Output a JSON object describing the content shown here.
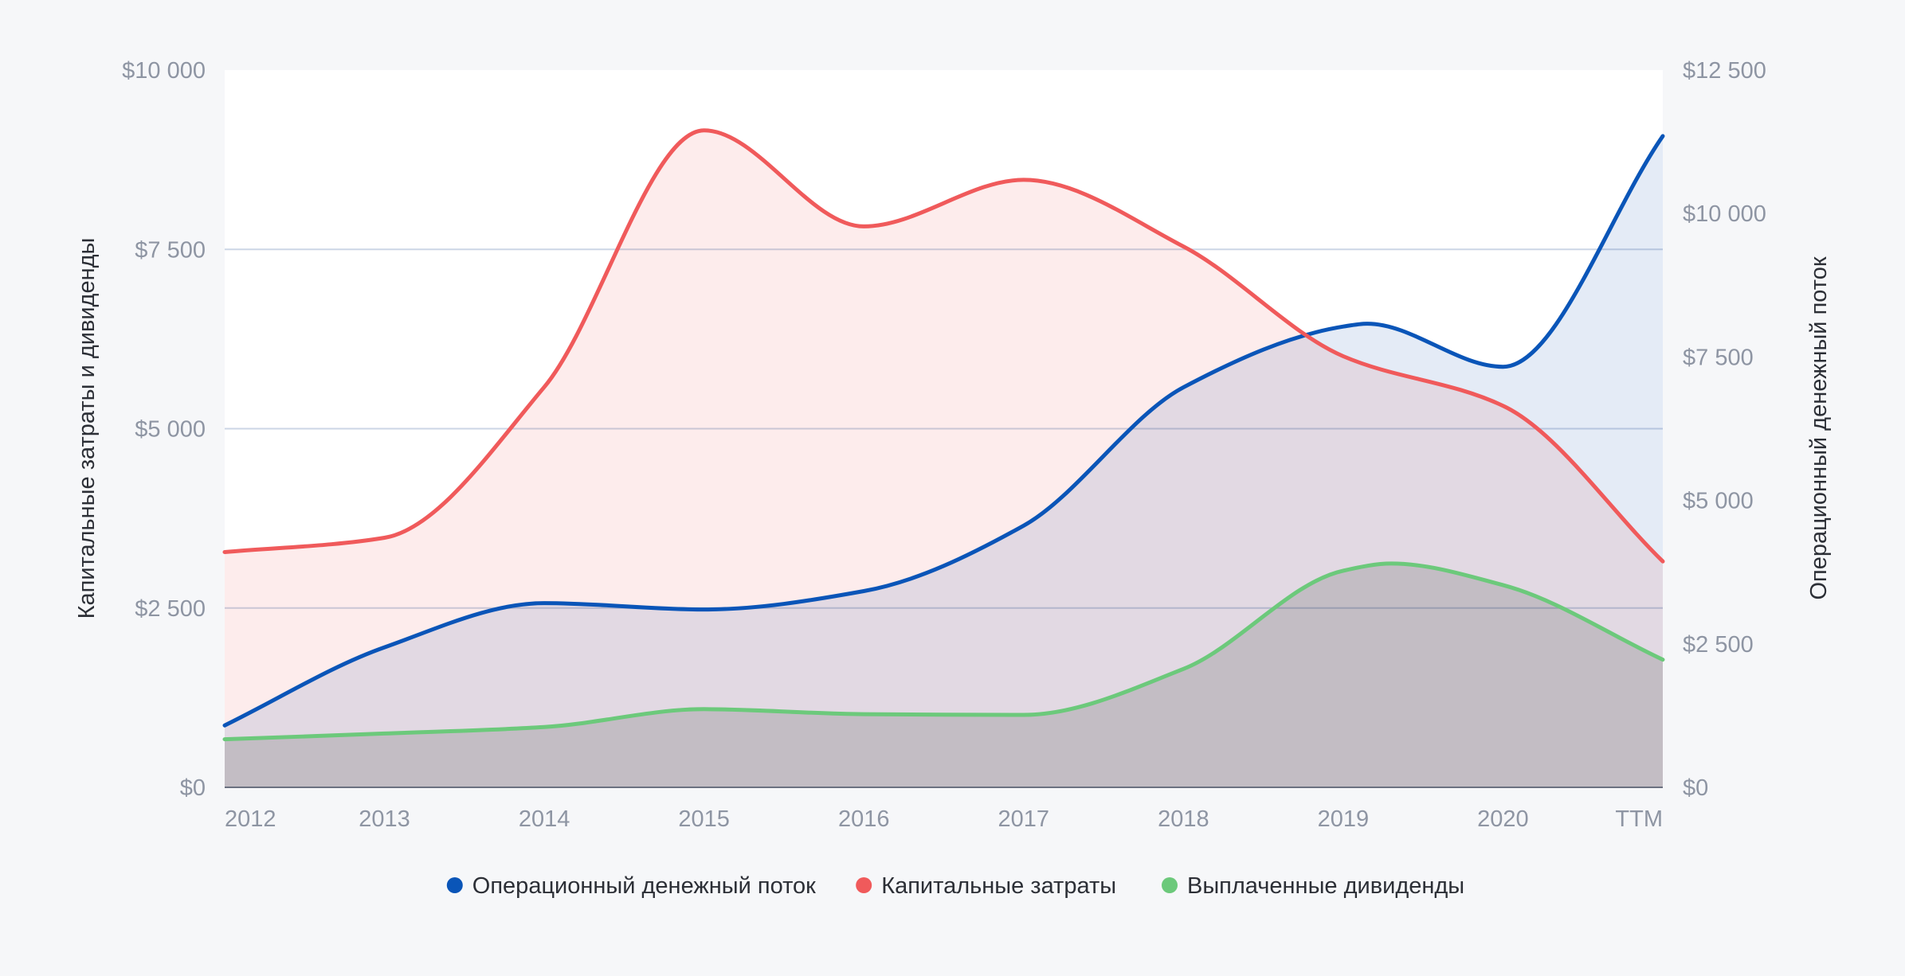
{
  "chart_data": {
    "type": "area",
    "categories": [
      "2012",
      "2013",
      "2014",
      "2015",
      "2016",
      "2017",
      "2018",
      "2019",
      "2020",
      "TTM"
    ],
    "left_axis": {
      "label": "Капитальные затраты и дивиденды",
      "ylim": [
        0,
        10000
      ],
      "ticks": [
        0,
        2500,
        5000,
        7500,
        10000
      ],
      "tick_labels": [
        "$0",
        "$2 500",
        "$5 000",
        "$7 500",
        "$10 000"
      ]
    },
    "right_axis": {
      "label": "Операционный денежный поток",
      "ylim": [
        0,
        12500
      ],
      "ticks": [
        0,
        2500,
        5000,
        7500,
        10000,
        12500
      ],
      "tick_labels": [
        "$0",
        "$2 500",
        "$5 000",
        "$7 500",
        "$10 000",
        "$12 500"
      ]
    },
    "series": [
      {
        "name": "Операционный денежный поток",
        "axis": "right",
        "color": "#0a55b8",
        "fill": "#e4ebf6",
        "x": [
          0,
          1,
          2,
          3,
          4,
          5,
          6,
          7,
          7.15,
          8,
          9
        ],
        "values": [
          1080,
          2440,
          3210,
          3100,
          3420,
          4560,
          6970,
          8030,
          8080,
          7330,
          11350
        ]
      },
      {
        "name": "Капитальные затраты",
        "axis": "left",
        "color": "#f05a5b",
        "fill": "#fdecec",
        "x": [
          0,
          1,
          2,
          3,
          4,
          5,
          6,
          7,
          8,
          9
        ],
        "values": [
          3280,
          3480,
          5580,
          9160,
          7820,
          8470,
          7540,
          6010,
          5320,
          3150
        ]
      },
      {
        "name": "Выплаченные дивиденды",
        "axis": "left",
        "color": "#6cc97b",
        "fill": "#dcdedd",
        "x": [
          0,
          1,
          2,
          3,
          4,
          5,
          6,
          7,
          7.3,
          8,
          9
        ],
        "values": [
          670,
          750,
          840,
          1090,
          1020,
          1010,
          1650,
          3020,
          3120,
          2820,
          1780
        ]
      }
    ],
    "grid": true,
    "legend": "bottom-center"
  }
}
